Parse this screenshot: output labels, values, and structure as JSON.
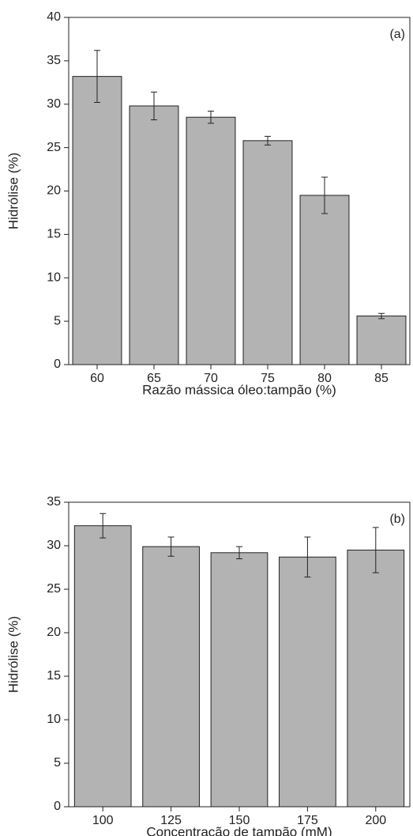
{
  "chart_data": [
    {
      "type": "bar",
      "panel_label": "(a)",
      "xlabel": "Razão mássica óleo:tampão (%)",
      "ylabel": "Hidrólise (%)",
      "categories": [
        "60",
        "65",
        "70",
        "75",
        "80",
        "85"
      ],
      "values": [
        33.2,
        29.8,
        28.5,
        25.8,
        19.5,
        5.6
      ],
      "errors": [
        3.0,
        1.6,
        0.7,
        0.5,
        2.1,
        0.3
      ],
      "color": "#b3b3b3",
      "ylim": [
        0,
        40
      ],
      "yticks": [
        0,
        5,
        10,
        15,
        20,
        25,
        30,
        35,
        40
      ]
    },
    {
      "type": "bar",
      "panel_label": "(b)",
      "xlabel": "Concentração de tampão (mM)",
      "ylabel": "Hidrólise (%)",
      "categories": [
        "100",
        "125",
        "150",
        "175",
        "200"
      ],
      "values": [
        32.3,
        29.9,
        29.2,
        28.7,
        29.5
      ],
      "errors": [
        1.4,
        1.1,
        0.7,
        2.3,
        2.6
      ],
      "color": "#b3b3b3",
      "ylim": [
        0,
        35
      ],
      "yticks": [
        0,
        5,
        10,
        15,
        20,
        25,
        30,
        35
      ]
    }
  ]
}
